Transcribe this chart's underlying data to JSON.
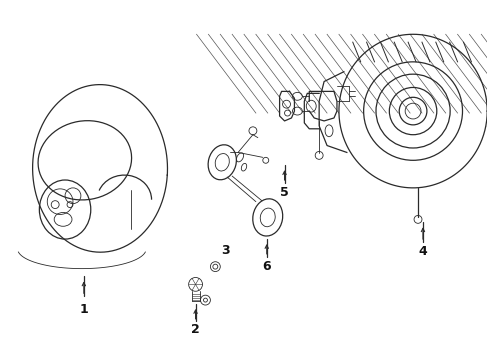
{
  "background_color": "#ffffff",
  "line_color": "#2a2a2a",
  "label_color": "#111111",
  "fig_width": 4.9,
  "fig_height": 3.6,
  "dpi": 100
}
